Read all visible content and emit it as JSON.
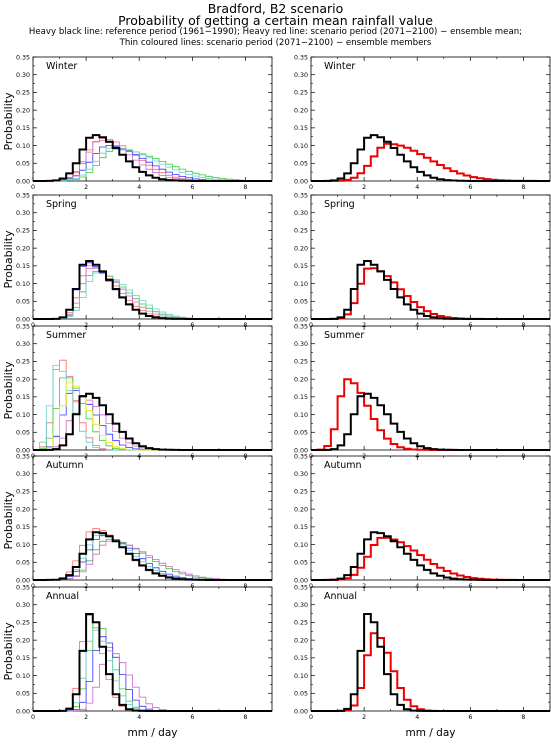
{
  "header": {
    "title_line1": "Bradford, B2 scenario",
    "title_line2": "Probability of getting a certain mean rainfall value",
    "note_line1": "Heavy black line: reference period (1961−1990); Heavy red line: scenario period (2071−2100) − ensemble mean;",
    "note_line2": "Thin coloured lines: scenario period (2071−2100) − ensemble members"
  },
  "chart_data": {
    "type": "line",
    "style": "step histogram",
    "xlabel": "mm / day",
    "ylabel": "Probability",
    "xlim": [
      0,
      9
    ],
    "ylim": [
      0,
      0.35
    ],
    "xticks": [
      "0",
      "2",
      "4",
      "6",
      "8"
    ],
    "yticks": [
      "0.00",
      "0.05",
      "0.10",
      "0.15",
      "0.20",
      "0.25",
      "0.30",
      "0.35"
    ],
    "grid": false,
    "bin_width": 0.25,
    "columns": [
      "ensemble members",
      "ensemble mean"
    ],
    "colors": {
      "reference": "#000000",
      "scenario_mean": "#ee0000",
      "members": [
        "#ff6666",
        "#33cc33",
        "#3333ff",
        "#cc66cc",
        "#66cccc",
        "#e8e800",
        "#999999"
      ]
    },
    "panels": [
      {
        "season": "Winter",
        "reference": {
          "mean": 2.3,
          "sd": 0.75,
          "skew": 0.35,
          "peak": 0.13
        },
        "scenario_mean": {
          "mean": 2.9,
          "sd": 1.05,
          "skew": 0.45,
          "peak": 0.105
        },
        "members": [
          {
            "mean": 2.6,
            "sd": 0.9,
            "skew": 0.4,
            "peak": 0.12
          },
          {
            "mean": 3.1,
            "sd": 1.2,
            "skew": 0.5,
            "peak": 0.09
          },
          {
            "mean": 2.8,
            "sd": 1.0,
            "skew": 0.4,
            "peak": 0.1
          },
          {
            "mean": 2.5,
            "sd": 0.85,
            "skew": 0.4,
            "peak": 0.115
          },
          {
            "mean": 3.0,
            "sd": 1.1,
            "skew": 0.45,
            "peak": 0.095
          }
        ]
      },
      {
        "season": "Spring",
        "reference": {
          "mean": 2.0,
          "sd": 0.65,
          "skew": 0.5,
          "peak": 0.165
        },
        "scenario_mean": {
          "mean": 2.2,
          "sd": 0.75,
          "skew": 0.5,
          "peak": 0.145
        },
        "members": [
          {
            "mean": 2.1,
            "sd": 0.7,
            "skew": 0.5,
            "peak": 0.15
          },
          {
            "mean": 2.3,
            "sd": 0.8,
            "skew": 0.5,
            "peak": 0.135
          },
          {
            "mean": 2.0,
            "sd": 0.65,
            "skew": 0.5,
            "peak": 0.16
          },
          {
            "mean": 2.2,
            "sd": 0.75,
            "skew": 0.5,
            "peak": 0.145
          },
          {
            "mean": 2.4,
            "sd": 0.85,
            "skew": 0.5,
            "peak": 0.13
          }
        ]
      },
      {
        "season": "Summer",
        "reference": {
          "mean": 2.0,
          "sd": 0.65,
          "skew": 0.4,
          "peak": 0.16
        },
        "scenario_mean": {
          "mean": 1.35,
          "sd": 0.55,
          "skew": 0.45,
          "peak": 0.2
        },
        "members": [
          {
            "mean": 1.0,
            "sd": 0.4,
            "skew": 0.4,
            "peak": 0.26
          },
          {
            "mean": 1.2,
            "sd": 0.5,
            "skew": 0.4,
            "peak": 0.21
          },
          {
            "mean": 1.5,
            "sd": 0.6,
            "skew": 0.4,
            "peak": 0.17
          },
          {
            "mean": 1.8,
            "sd": 0.65,
            "skew": 0.4,
            "peak": 0.15
          },
          {
            "mean": 0.9,
            "sd": 0.4,
            "skew": 0.4,
            "peak": 0.24
          },
          {
            "mean": 1.4,
            "sd": 0.5,
            "skew": 0.4,
            "peak": 0.19
          }
        ]
      },
      {
        "season": "Autumn",
        "reference": {
          "mean": 2.4,
          "sd": 0.8,
          "skew": 0.4,
          "peak": 0.135
        },
        "scenario_mean": {
          "mean": 2.7,
          "sd": 0.95,
          "skew": 0.45,
          "peak": 0.12
        },
        "members": [
          {
            "mean": 2.3,
            "sd": 0.8,
            "skew": 0.4,
            "peak": 0.145
          },
          {
            "mean": 2.8,
            "sd": 1.0,
            "skew": 0.45,
            "peak": 0.115
          },
          {
            "mean": 2.6,
            "sd": 0.9,
            "skew": 0.4,
            "peak": 0.125
          },
          {
            "mean": 2.9,
            "sd": 1.05,
            "skew": 0.45,
            "peak": 0.11
          },
          {
            "mean": 2.5,
            "sd": 0.85,
            "skew": 0.4,
            "peak": 0.13
          }
        ]
      },
      {
        "season": "Annual",
        "reference": {
          "mean": 2.15,
          "sd": 0.4,
          "skew": 0.3,
          "peak": 0.275
        },
        "scenario_mean": {
          "mean": 2.4,
          "sd": 0.48,
          "skew": 0.3,
          "peak": 0.22
        },
        "members": [
          {
            "mean": 2.1,
            "sd": 0.4,
            "skew": 0.3,
            "peak": 0.27
          },
          {
            "mean": 2.4,
            "sd": 0.45,
            "skew": 0.3,
            "peak": 0.25
          },
          {
            "mean": 2.6,
            "sd": 0.5,
            "skew": 0.3,
            "peak": 0.21
          },
          {
            "mean": 2.9,
            "sd": 0.55,
            "skew": 0.3,
            "peak": 0.17
          },
          {
            "mean": 2.3,
            "sd": 0.45,
            "skew": 0.3,
            "peak": 0.23
          }
        ]
      }
    ]
  }
}
